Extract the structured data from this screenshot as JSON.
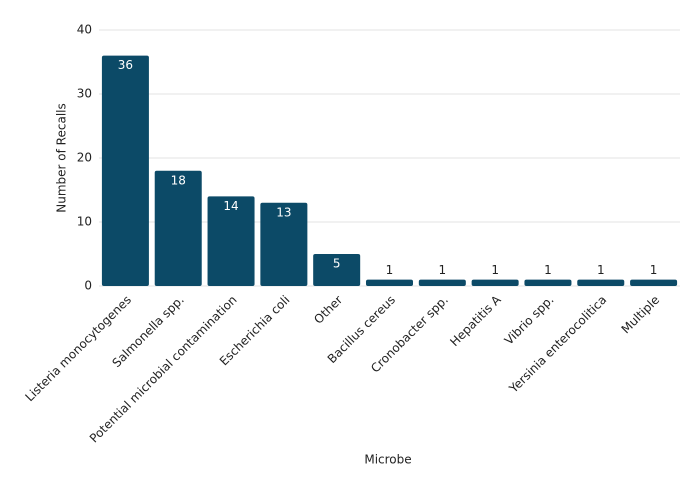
{
  "chart_data": {
    "type": "bar",
    "x_label": "Microbe",
    "y_label": "Number of Recalls",
    "categories": [
      "Listeria monocytogenes",
      "Salmonella spp.",
      "Potential microbial contamination",
      "Escherichia coli",
      "Other",
      "Bacillus cereus",
      "Cronobacter spp.",
      "Hepatitis A",
      "Vibrio spp.",
      "Yersinia enterocolitica",
      "Multiple"
    ],
    "values": [
      36,
      18,
      14,
      13,
      5,
      1,
      1,
      1,
      1,
      1,
      1
    ],
    "color": "#0c4a67",
    "ylim": [
      0,
      40
    ],
    "yticks": [
      0,
      10,
      20,
      30,
      40
    ],
    "grid": true
  }
}
